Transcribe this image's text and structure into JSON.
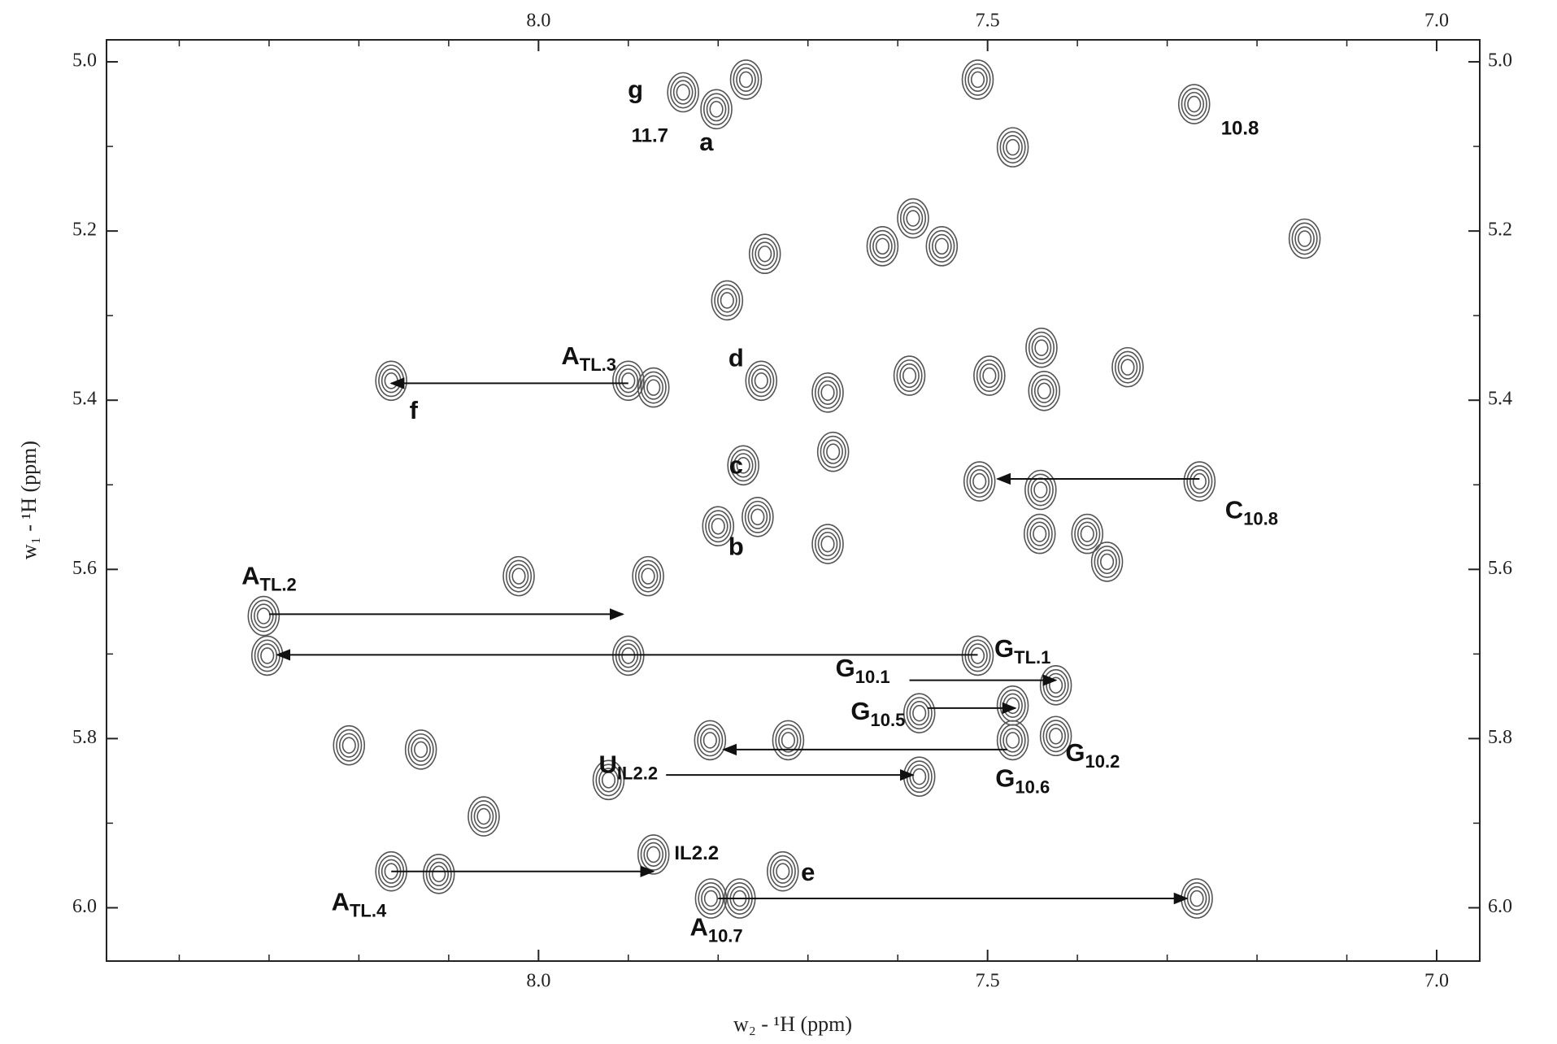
{
  "chart_data": {
    "type": "contour",
    "xlabel": "w₂ - ¹H  (ppm)",
    "ylabel": "w₁ - ¹H  (ppm)",
    "xlim": [
      8.481,
      6.952
    ],
    "ylim": [
      4.974,
      6.063
    ],
    "xticks": [
      {
        "value": 8.0,
        "label": "8.0"
      },
      {
        "value": 7.5,
        "label": "7.5"
      },
      {
        "value": 7.0,
        "label": "7.0"
      }
    ],
    "yticks": [
      {
        "value": 5.0,
        "label": "5.0"
      },
      {
        "value": 5.2,
        "label": "5.2"
      },
      {
        "value": 5.4,
        "label": "5.4"
      },
      {
        "value": 5.6,
        "label": "5.6"
      },
      {
        "value": 5.8,
        "label": "5.8"
      },
      {
        "value": 6.0,
        "label": "6.0"
      }
    ],
    "xminorticks": [
      8.4,
      8.3,
      8.2,
      8.1,
      7.9,
      7.8,
      7.7,
      7.6,
      7.4,
      7.3,
      7.2,
      7.1
    ],
    "yminorticks": [
      5.1,
      5.3,
      5.5,
      5.7,
      5.9
    ],
    "color": "#555555",
    "peaks": {
      "x": [
        7.839,
        7.27,
        7.802,
        7.769,
        7.511,
        7.472,
        7.583,
        7.617,
        7.551,
        7.748,
        7.147,
        7.79,
        8.164,
        7.9,
        7.872,
        7.752,
        7.587,
        7.498,
        7.44,
        7.437,
        7.344,
        7.672,
        7.678,
        7.264,
        7.509,
        7.441,
        7.772,
        7.8,
        7.756,
        7.878,
        7.678,
        7.389,
        7.442,
        7.367,
        8.022,
        8.306,
        8.302,
        7.511,
        7.9,
        7.424,
        7.576,
        7.472,
        7.472,
        7.809,
        7.722,
        7.576,
        8.211,
        8.131,
        7.922,
        8.061,
        7.872,
        8.164,
        8.111,
        7.728,
        7.808,
        7.776,
        7.267,
        7.424
      ],
      "y": [
        5.036,
        5.05,
        5.056,
        5.021,
        5.021,
        5.101,
        5.185,
        5.218,
        5.218,
        5.227,
        5.209,
        5.282,
        5.377,
        5.377,
        5.385,
        5.377,
        5.371,
        5.371,
        5.338,
        5.389,
        5.361,
        5.461,
        5.391,
        5.496,
        5.496,
        5.506,
        5.477,
        5.549,
        5.538,
        5.608,
        5.57,
        5.558,
        5.558,
        5.591,
        5.608,
        5.655,
        5.702,
        5.702,
        5.702,
        5.737,
        5.77,
        5.761,
        5.802,
        5.802,
        5.802,
        5.845,
        5.808,
        5.813,
        5.849,
        5.892,
        5.937,
        5.957,
        5.96,
        5.957,
        5.989,
        5.989,
        5.989,
        5.797
      ]
    },
    "arrows": [
      {
        "x": [
          7.9,
          8.164
        ],
        "y": 5.38
      },
      {
        "x": [
          7.264,
          7.489
        ],
        "y": 5.493
      },
      {
        "x": [
          8.3,
          7.906
        ],
        "y": 5.653
      },
      {
        "x": [
          7.511,
          8.291
        ],
        "y": 5.701
      },
      {
        "x": [
          7.587,
          7.424
        ],
        "y": 5.731
      },
      {
        "x": [
          7.567,
          7.469
        ],
        "y": 5.764
      },
      {
        "x": [
          7.478,
          7.794
        ],
        "y": 5.813
      },
      {
        "x": [
          7.858,
          7.583
        ],
        "y": 5.843
      },
      {
        "x": [
          8.164,
          7.872
        ],
        "y": 5.957
      },
      {
        "x": [
          7.8,
          7.278
        ],
        "y": 5.989
      }
    ],
    "annotations": [
      {
        "text": "g",
        "x": 7.892,
        "y": 5.035
      },
      {
        "text": "11.7",
        "x": 7.876,
        "y": 5.089
      },
      {
        "text": "a",
        "x": 7.813,
        "y": 5.097
      },
      {
        "text": "10.8",
        "x": 7.219,
        "y": 5.08
      },
      {
        "text": "A",
        "sub": "TL.3",
        "x": 7.944,
        "y": 5.35
      },
      {
        "text": "d",
        "x": 7.78,
        "y": 5.352
      },
      {
        "text": "f",
        "x": 8.139,
        "y": 5.414
      },
      {
        "text": "c",
        "x": 7.78,
        "y": 5.479
      },
      {
        "text": "b",
        "x": 7.78,
        "y": 5.575
      },
      {
        "text": "C",
        "sub": "10.8",
        "x": 7.206,
        "y": 5.532
      },
      {
        "text": "A",
        "sub": "TL.2",
        "x": 8.3,
        "y": 5.61
      },
      {
        "text": "G",
        "sub": "TL.1",
        "x": 7.461,
        "y": 5.696
      },
      {
        "text": "G",
        "sub": "10.1",
        "x": 7.639,
        "y": 5.719
      },
      {
        "text": "G",
        "sub": "10.5",
        "x": 7.622,
        "y": 5.77
      },
      {
        "text": "G",
        "sub": "10.2",
        "x": 7.383,
        "y": 5.819
      },
      {
        "text": "G",
        "sub": "10.6",
        "x": 7.461,
        "y": 5.849
      },
      {
        "text": "U",
        "sub": "IL2.2",
        "x": 7.9,
        "y": 5.833
      },
      {
        "text": "IL2.2",
        "x": 7.824,
        "y": 5.937
      },
      {
        "text": "e",
        "x": 7.7,
        "y": 5.96
      },
      {
        "text": "A",
        "sub": "TL.4",
        "x": 8.2,
        "y": 5.995
      },
      {
        "text": "A",
        "sub": "10.7",
        "x": 7.802,
        "y": 6.025
      }
    ]
  }
}
